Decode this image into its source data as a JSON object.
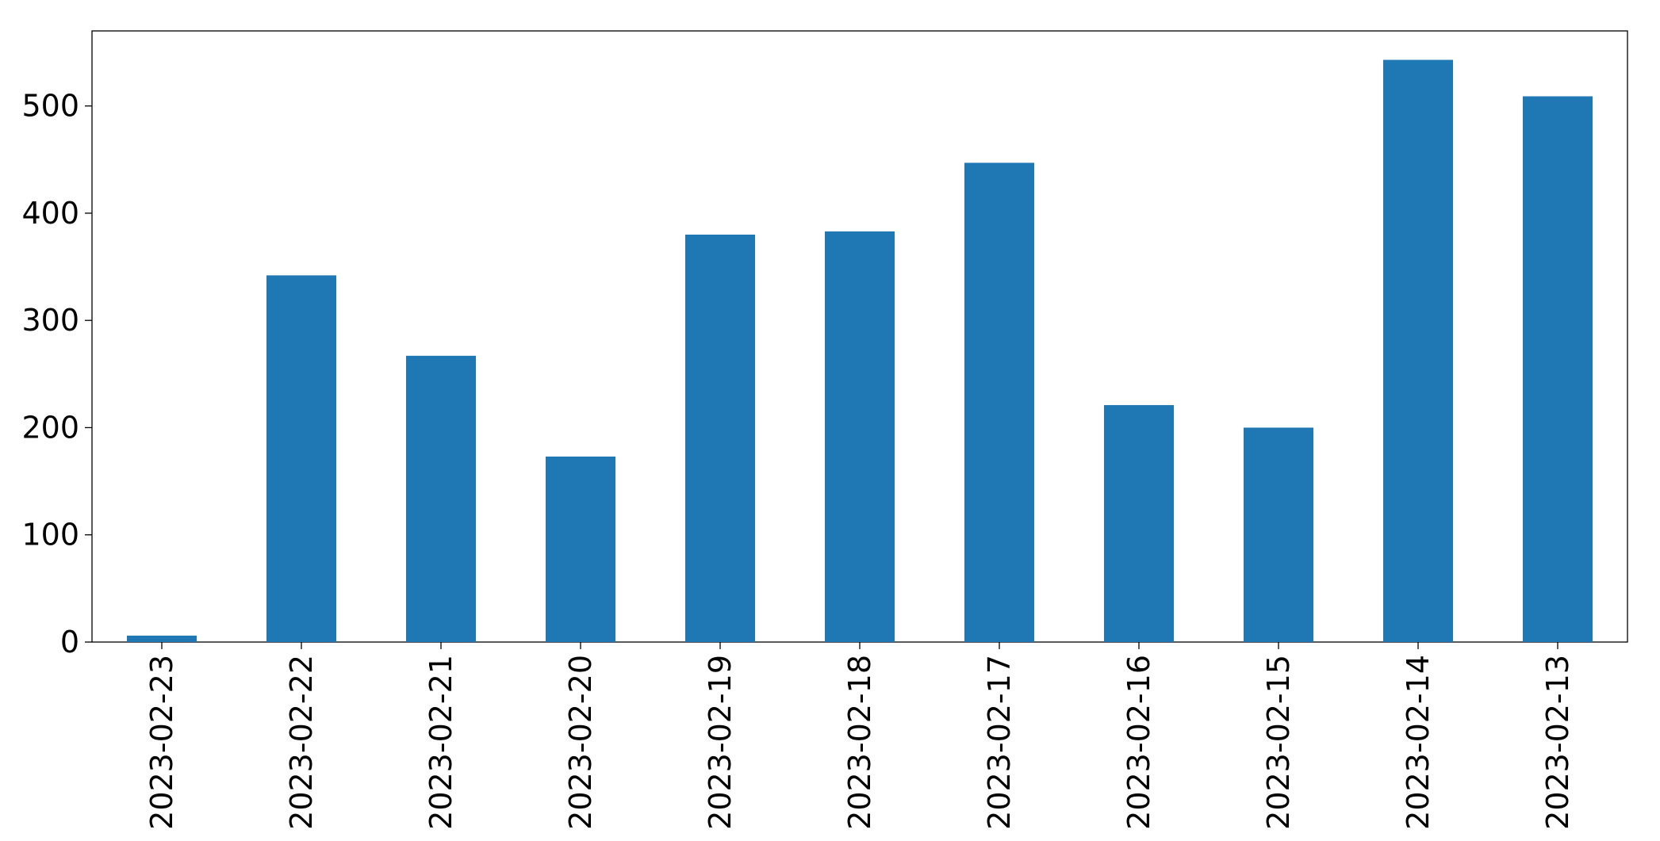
{
  "chart_data": {
    "type": "bar",
    "categories": [
      "2023-02-23",
      "2023-02-22",
      "2023-02-21",
      "2023-02-20",
      "2023-02-19",
      "2023-02-18",
      "2023-02-17",
      "2023-02-16",
      "2023-02-15",
      "2023-02-14",
      "2023-02-13"
    ],
    "values": [
      6,
      342,
      267,
      173,
      380,
      383,
      447,
      221,
      200,
      543,
      509
    ],
    "color": "#1f77b4",
    "ylim": [
      0,
      570
    ],
    "yticks": [
      0,
      100,
      200,
      300,
      400,
      500
    ],
    "grid": false
  }
}
